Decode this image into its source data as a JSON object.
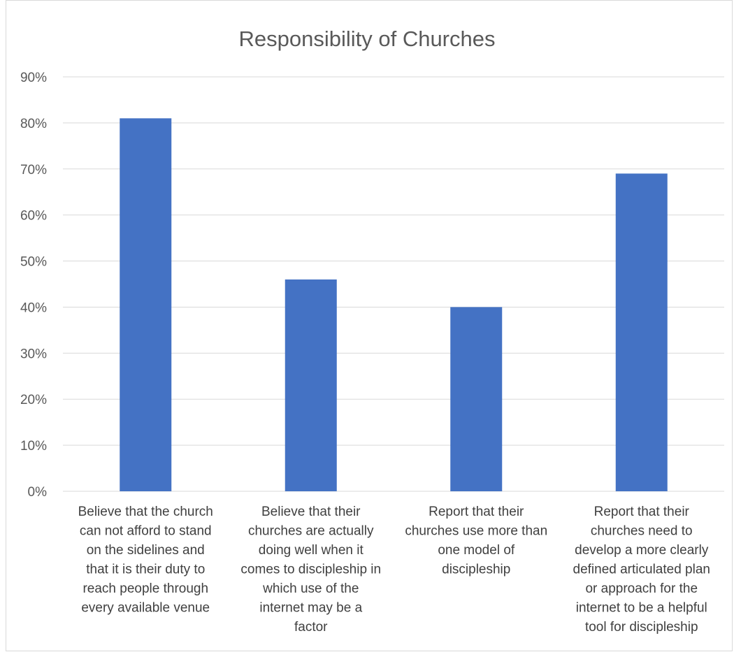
{
  "chart_data": {
    "type": "bar",
    "title": "Responsibility of Churches",
    "categories": [
      [
        "Believe that the church",
        "can not afford to stand",
        "on the sidelines and",
        "that it is their duty to",
        "reach people through",
        "every available venue"
      ],
      [
        "Believe that their",
        "churches are actually",
        "doing well when it",
        "comes to discipleship in",
        "which use of the",
        "internet may be a",
        "factor"
      ],
      [
        "Report that their",
        "churches use more than",
        "one model of",
        "discipleship"
      ],
      [
        "Report that their",
        "churches need to",
        "develop a more clearly",
        "defined articulated plan",
        "or approach for the",
        "internet to be a helpful",
        "tool for discipleship"
      ]
    ],
    "values": [
      81,
      46,
      40,
      69
    ],
    "ylim": [
      0,
      90
    ],
    "yticks": [
      "0%",
      "10%",
      "20%",
      "30%",
      "40%",
      "50%",
      "60%",
      "70%",
      "80%",
      "90%"
    ],
    "grid": true,
    "bar_color": "#4472C4",
    "xlabel": "",
    "ylabel": ""
  }
}
